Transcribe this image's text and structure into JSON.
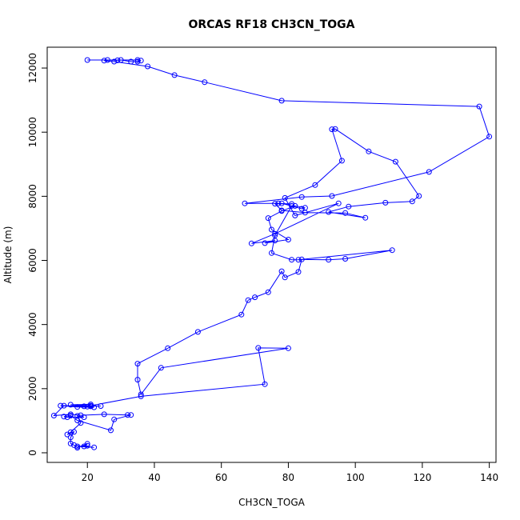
{
  "chart_data": {
    "type": "line",
    "title": "ORCAS RF18 CH3CN_TOGA",
    "xlabel": "CH3CN_TOGA",
    "ylabel": "Altitude (m)",
    "xlim": [
      8,
      142
    ],
    "ylim": [
      -300,
      12650
    ],
    "xticks": [
      20,
      40,
      60,
      80,
      100,
      120,
      140
    ],
    "yticks": [
      0,
      2000,
      4000,
      6000,
      8000,
      10000,
      12000
    ],
    "xtick_labels": [
      "20",
      "40",
      "60",
      "80",
      "100",
      "120",
      "140"
    ],
    "ytick_labels": [
      "0",
      "2000",
      "4000",
      "6000",
      "8000",
      "10000",
      "12000"
    ],
    "grid": false,
    "color": "#0000ff",
    "series": [
      {
        "x": [
          20,
          35,
          36,
          35,
          33,
          30,
          29,
          26,
          25,
          28,
          38,
          46,
          55,
          78,
          137,
          140,
          122,
          93,
          84,
          67,
          77,
          81,
          76,
          78,
          85,
          97,
          103,
          92,
          98,
          109,
          117,
          119,
          112,
          104,
          94,
          93,
          96,
          88,
          79,
          82,
          95,
          76,
          69,
          76,
          73,
          80,
          75,
          74,
          78,
          82,
          85,
          84,
          78,
          81,
          76,
          75,
          81,
          83,
          111,
          97,
          92,
          84,
          83,
          79,
          78,
          74,
          70,
          68,
          66,
          53,
          44,
          35,
          35,
          36,
          42,
          80,
          71,
          73,
          36,
          21,
          15,
          21,
          20,
          12,
          17,
          22,
          21,
          19,
          24,
          13,
          10,
          15,
          18,
          25,
          32,
          33,
          28,
          27,
          17,
          15,
          13,
          14,
          19,
          17,
          18,
          15,
          14,
          16,
          15,
          15,
          16,
          17,
          20,
          19,
          22,
          17,
          20
        ],
        "y": [
          12250,
          12250,
          12230,
          12200,
          12200,
          12250,
          12240,
          12250,
          12230,
          12200,
          12050,
          11780,
          11560,
          10980,
          10800,
          9860,
          8760,
          8010,
          7980,
          7780,
          7780,
          7760,
          7770,
          7560,
          7490,
          7480,
          7330,
          7510,
          7680,
          7800,
          7840,
          8010,
          9080,
          9400,
          10100,
          10090,
          9110,
          8350,
          7950,
          7400,
          7780,
          6830,
          6530,
          6620,
          6540,
          6650,
          6960,
          7320,
          7540,
          7700,
          7640,
          7610,
          7780,
          7700,
          6780,
          6230,
          6020,
          6020,
          6320,
          6050,
          6020,
          6030,
          5640,
          5470,
          5660,
          5010,
          4850,
          4760,
          4310,
          3770,
          3260,
          2780,
          2280,
          1820,
          2650,
          3260,
          3270,
          2140,
          1760,
          1470,
          1500,
          1510,
          1440,
          1470,
          1430,
          1420,
          1450,
          1450,
          1460,
          1470,
          1160,
          1200,
          1170,
          1200,
          1180,
          1180,
          1040,
          700,
          1010,
          1160,
          1130,
          1110,
          1110,
          1150,
          930,
          640,
          570,
          650,
          480,
          290,
          240,
          160,
          280,
          200,
          170,
          200,
          220
        ]
      }
    ]
  }
}
